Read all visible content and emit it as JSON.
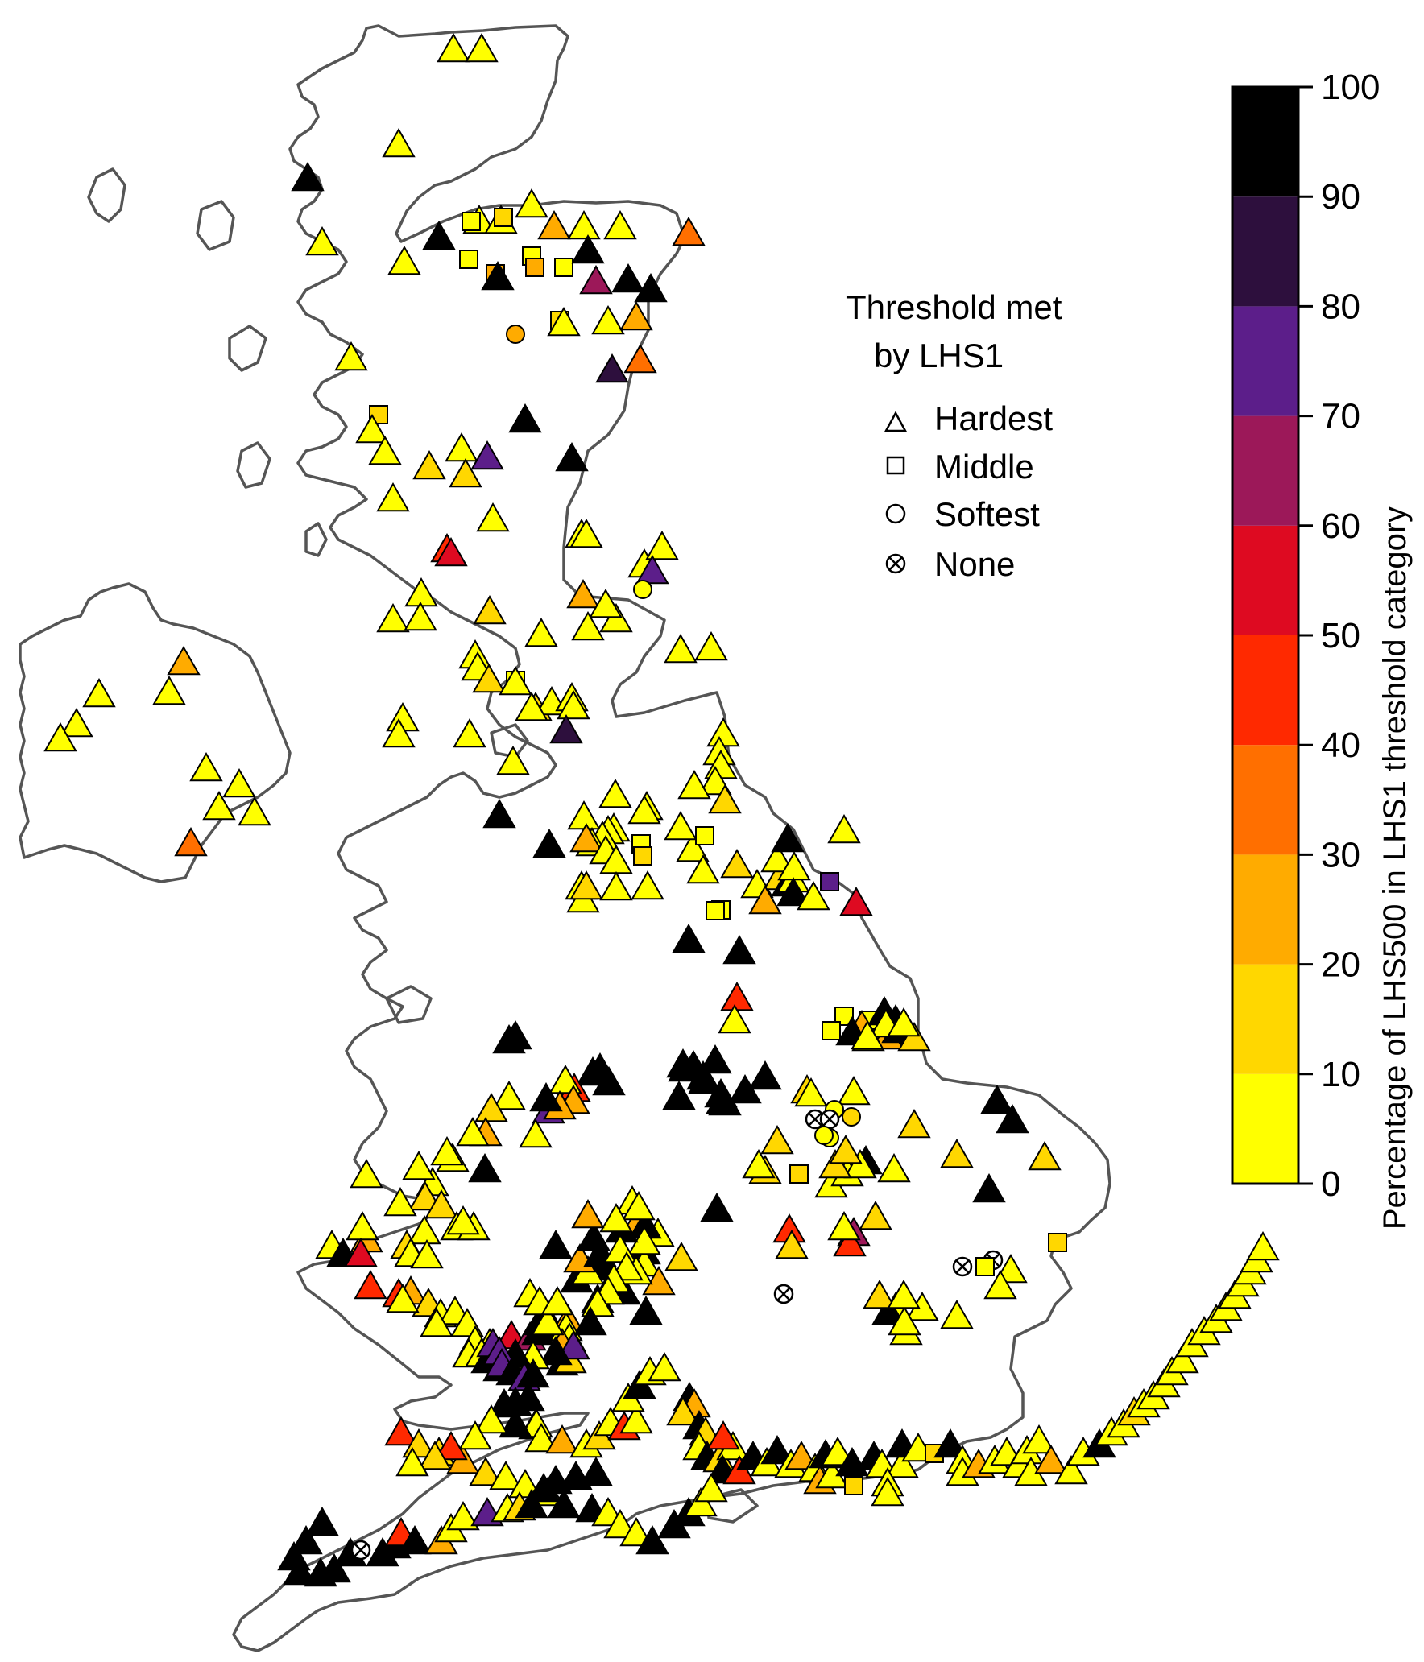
{
  "legend": {
    "title_line1": "Threshold met",
    "title_line2": "by LHS1",
    "items": [
      {
        "shape": "triangle",
        "label": "Hardest"
      },
      {
        "shape": "square",
        "label": "Middle"
      },
      {
        "shape": "circle",
        "label": "Softest"
      },
      {
        "shape": "crossed-circle",
        "label": "None"
      }
    ]
  },
  "colorbar": {
    "label": "Percentage of LHS500 in LHS1  threshold category",
    "ticks": [
      "100",
      "90",
      "80",
      "70",
      "60",
      "50",
      "40",
      "30",
      "20",
      "10",
      "0"
    ],
    "bins": [
      {
        "range": [
          0,
          10
        ],
        "color": "#ffff00"
      },
      {
        "range": [
          10,
          20
        ],
        "color": "#ffd700"
      },
      {
        "range": [
          20,
          30
        ],
        "color": "#ffab00"
      },
      {
        "range": [
          30,
          40
        ],
        "color": "#ff6f00"
      },
      {
        "range": [
          40,
          50
        ],
        "color": "#ff2900"
      },
      {
        "range": [
          50,
          60
        ],
        "color": "#de0a21"
      },
      {
        "range": [
          60,
          70
        ],
        "color": "#9c1859"
      },
      {
        "range": [
          70,
          80
        ],
        "color": "#5c1e8a"
      },
      {
        "range": [
          80,
          90
        ],
        "color": "#2d0f3d"
      },
      {
        "range": [
          90,
          100
        ],
        "color": "#000000"
      }
    ]
  },
  "colors": {
    "coastline": "#555555",
    "marker_edge": "#000000"
  }
}
